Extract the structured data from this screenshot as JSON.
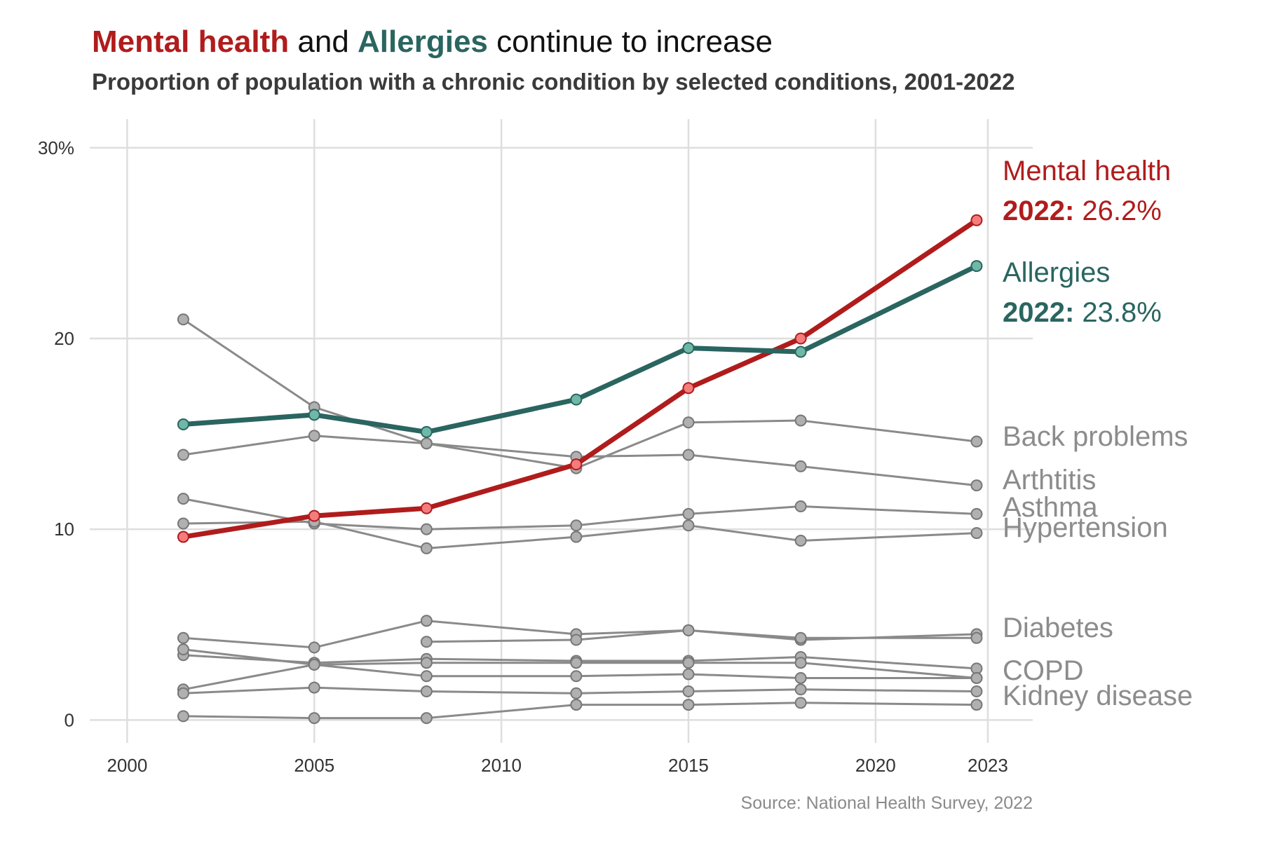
{
  "colors": {
    "mental_health": "#b01c1c",
    "mental_health_point": "#f47c7c",
    "allergies": "#2a6560",
    "allergies_point": "#6fb8a8",
    "other": "#8a8a8a",
    "other_point": "#b0b0b0",
    "grid": "#dedede"
  },
  "chart_data": {
    "type": "line",
    "title": {
      "part1": "Mental health",
      "part2": " and ",
      "part3": "Allergies",
      "part4": " continue to increase"
    },
    "subtitle": "Proportion of population with a chronic condition by selected conditions, 2001-2022",
    "source": "Source: National Health Survey, 2022",
    "x_ticks": [
      2000,
      2005,
      2010,
      2015,
      2020,
      2023
    ],
    "x_tick_labels": [
      "2000",
      "2005",
      "2010",
      "2015",
      "2020",
      "2023"
    ],
    "y_ticks": [
      0,
      10,
      20,
      30
    ],
    "y_tick_labels": [
      "0",
      "10",
      "20",
      "30%"
    ],
    "xlim": [
      1999,
      2024.2
    ],
    "ylim": [
      -1.2,
      31.5
    ],
    "grid": true,
    "highlight": [
      {
        "name": "Mental health",
        "key": "mental_health",
        "x": [
          2001.5,
          2005,
          2008,
          2012,
          2015,
          2018,
          2022.7
        ],
        "values": [
          9.6,
          10.7,
          11.1,
          13.4,
          17.4,
          20.0,
          26.2
        ],
        "label_year": "2022:",
        "label_value": "26.2%"
      },
      {
        "name": "Allergies",
        "key": "allergies",
        "x": [
          2001.5,
          2005,
          2008,
          2012,
          2015,
          2018,
          2022.7
        ],
        "values": [
          15.5,
          16.0,
          15.1,
          16.8,
          19.5,
          19.3,
          23.8
        ],
        "label_year": "2022:",
        "label_value": "23.8%"
      }
    ],
    "series": [
      {
        "name": "Back problems",
        "x": [
          2001.5,
          2005,
          2008,
          2012,
          2015,
          2018,
          2022.7
        ],
        "values": [
          21.0,
          16.4,
          14.5,
          13.2,
          15.6,
          15.7,
          14.6
        ]
      },
      {
        "name": "Arthtitis",
        "x": [
          2001.5,
          2005,
          2008,
          2012,
          2015,
          2018,
          2022.7
        ],
        "values": [
          13.9,
          14.9,
          14.5,
          13.8,
          13.9,
          13.3,
          12.3
        ]
      },
      {
        "name": "Asthma",
        "x": [
          2001.5,
          2005,
          2008,
          2012,
          2015,
          2018,
          2022.7
        ],
        "values": [
          11.6,
          10.3,
          10.0,
          10.2,
          10.8,
          11.2,
          10.8
        ]
      },
      {
        "name": "Hypertension",
        "x": [
          2001.5,
          2005,
          2008,
          2012,
          2015,
          2018,
          2022.7
        ],
        "values": [
          10.3,
          10.4,
          9.0,
          9.6,
          10.2,
          9.4,
          9.8
        ]
      },
      {
        "name": "Diabetes",
        "x": [
          2001.5,
          2005,
          2008,
          2012,
          2015,
          2018,
          2022.7
        ],
        "values": [
          4.3,
          3.8,
          5.2,
          4.5,
          4.7,
          4.2,
          4.5
        ]
      },
      {
        "name": "",
        "x": [
          2008,
          2012,
          2015,
          2018,
          2022.7
        ],
        "values": [
          4.1,
          4.2,
          4.7,
          4.3,
          4.3
        ]
      },
      {
        "name": "",
        "x": [
          2001.5,
          2005,
          2008,
          2012,
          2015,
          2018,
          2022.7
        ],
        "values": [
          3.4,
          3.0,
          3.2,
          3.1,
          3.1,
          3.3,
          2.7
        ]
      },
      {
        "name": "COPD",
        "x": [
          2001.5,
          2005,
          2008,
          2012,
          2015,
          2018,
          2022.7
        ],
        "values": [
          3.7,
          2.9,
          2.3,
          2.3,
          2.4,
          2.2,
          2.2
        ]
      },
      {
        "name": "",
        "x": [
          2001.5,
          2005,
          2008,
          2012,
          2015,
          2018,
          2022.7
        ],
        "values": [
          1.6,
          2.9,
          3.0,
          3.0,
          3.0,
          3.0,
          2.2
        ]
      },
      {
        "name": "",
        "x": [
          2001.5,
          2005,
          2008,
          2012,
          2015,
          2018,
          2022.7
        ],
        "values": [
          1.4,
          1.7,
          1.5,
          1.4,
          1.5,
          1.6,
          1.5
        ]
      },
      {
        "name": "Kidney disease",
        "x": [
          2001.5,
          2005,
          2008,
          2012,
          2015,
          2018,
          2022.7
        ],
        "values": [
          0.2,
          0.1,
          0.1,
          0.8,
          0.8,
          0.9,
          0.8
        ]
      }
    ]
  }
}
